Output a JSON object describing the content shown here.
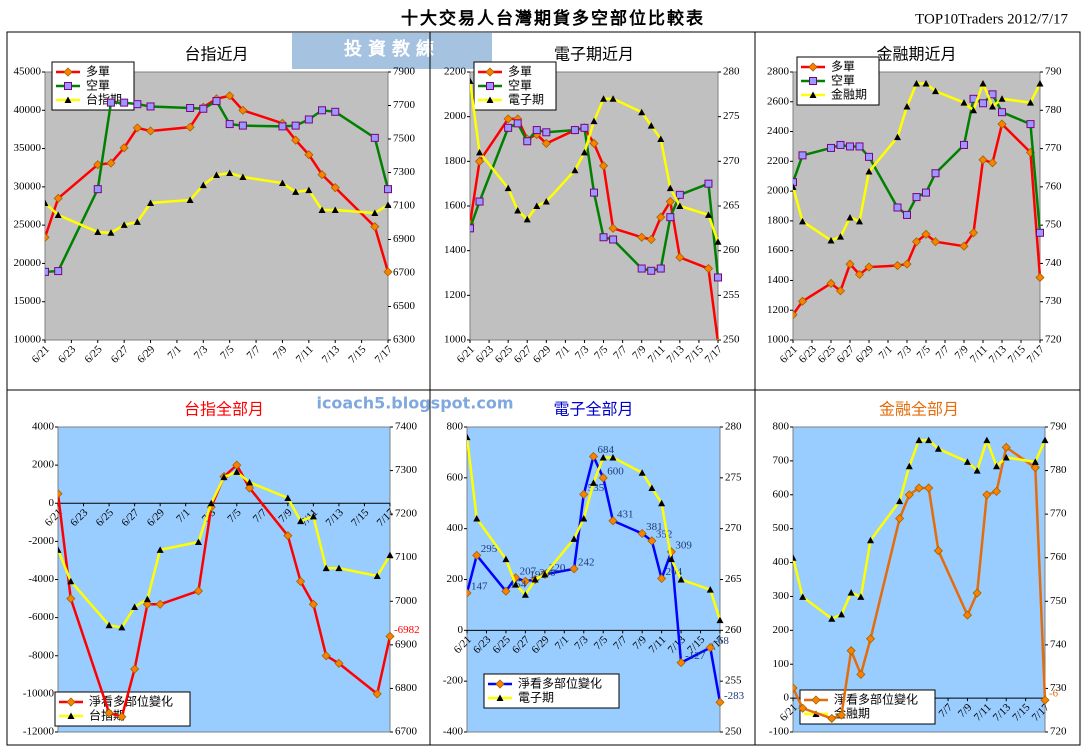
{
  "header": {
    "title": "十大交易人台灣期貨多空部位比較表",
    "source": "TOP10Traders 2012/7/17",
    "logo": "投資教練",
    "watermark": "icoach5.blogspot.com"
  },
  "chart_data": [
    {
      "type": "line",
      "title": "台指近月",
      "title_color": "#000000",
      "plot_color": "#c0c0c0",
      "legend": "upper left",
      "x": [
        "6/21",
        "6/22",
        "6/25",
        "6/26",
        "6/27",
        "6/28",
        "6/29",
        "7/2",
        "7/3",
        "7/4",
        "7/5",
        "7/6",
        "7/9",
        "7/10",
        "7/11",
        "7/12",
        "7/13",
        "7/16",
        "7/17"
      ],
      "xlim": [
        "6/21",
        "7/17"
      ],
      "xticks": [
        "6/21",
        "6/23",
        "6/25",
        "6/27",
        "6/29",
        "7/1",
        "7/3",
        "7/5",
        "7/7",
        "7/9",
        "7/11",
        "7/13",
        "7/15",
        "7/17"
      ],
      "ylim": [
        10000,
        45000
      ],
      "yticks": [
        10000,
        15000,
        20000,
        25000,
        30000,
        35000,
        40000,
        45000
      ],
      "y2lim": [
        6300,
        7900
      ],
      "y2ticks": [
        6300,
        6500,
        6700,
        6900,
        7100,
        7300,
        7500,
        7700,
        7900
      ],
      "series": [
        {
          "name": "多單",
          "color": "#ff0000",
          "marker": "diamond",
          "marker_color": "#ff8000",
          "values": [
            23400,
            28500,
            32900,
            33100,
            35100,
            37700,
            37300,
            37800,
            40400,
            41500,
            41900,
            40000,
            38300,
            36100,
            34200,
            31600,
            29900,
            24800,
            18900
          ]
        },
        {
          "name": "空單",
          "color": "#008000",
          "marker": "square",
          "marker_color": "#9999ff",
          "values": [
            18900,
            19000,
            29700,
            41000,
            41000,
            40800,
            40500,
            40300,
            40200,
            41200,
            38200,
            38000,
            37900,
            38000,
            38800,
            40000,
            39800,
            36400,
            29700
          ]
        },
        {
          "name": "台指期",
          "color": "#ffff00",
          "marker": "triangle",
          "marker_color": "#000000",
          "axis": "y2",
          "values": [
            7118,
            7046,
            6945,
            6940,
            6987,
            7005,
            7118,
            7136,
            7225,
            7285,
            7297,
            7273,
            7237,
            7184,
            7195,
            7076,
            7076,
            7058,
            7106
          ]
        }
      ]
    },
    {
      "type": "line",
      "title": "電子期近月",
      "title_color": "#000000",
      "plot_color": "#c0c0c0",
      "legend": "upper left",
      "x": [
        "6/21",
        "6/22",
        "6/25",
        "6/26",
        "6/27",
        "6/28",
        "6/29",
        "7/2",
        "7/3",
        "7/4",
        "7/5",
        "7/6",
        "7/9",
        "7/10",
        "7/11",
        "7/12",
        "7/13",
        "7/16",
        "7/17"
      ],
      "xlim": [
        "6/21",
        "7/17"
      ],
      "xticks": [
        "6/21",
        "6/23",
        "6/25",
        "6/27",
        "6/29",
        "7/1",
        "7/3",
        "7/5",
        "7/7",
        "7/9",
        "7/11",
        "7/13",
        "7/15",
        "7/17"
      ],
      "ylim": [
        1000,
        2200
      ],
      "yticks": [
        1000,
        1200,
        1400,
        1600,
        1800,
        2000,
        2200
      ],
      "y2lim": [
        250,
        280
      ],
      "y2ticks": [
        250,
        255,
        260,
        265,
        270,
        275,
        280
      ],
      "series": [
        {
          "name": "多單",
          "color": "#ff0000",
          "marker": "diamond",
          "marker_color": "#ff8000",
          "values": [
            1520,
            1800,
            1990,
            1990,
            1900,
            1920,
            1880,
            1940,
            1950,
            1880,
            1780,
            1500,
            1460,
            1450,
            1550,
            1620,
            1370,
            1320,
            990
          ]
        },
        {
          "name": "空單",
          "color": "#008000",
          "marker": "square",
          "marker_color": "#9999ff",
          "values": [
            1500,
            1620,
            1950,
            1970,
            1890,
            1940,
            1930,
            1940,
            1950,
            1660,
            1460,
            1450,
            1320,
            1310,
            1320,
            1550,
            1650,
            1700,
            1280
          ]
        },
        {
          "name": "電子期",
          "color": "#ffff00",
          "marker": "triangle",
          "marker_color": "#000000",
          "axis": "y2",
          "values": [
            279,
            271,
            267,
            264.5,
            263.5,
            265,
            265.5,
            269,
            271,
            274.5,
            277,
            277,
            275.5,
            274,
            272.5,
            267,
            265,
            264,
            261
          ]
        }
      ]
    },
    {
      "type": "line",
      "title": "金融期近月",
      "title_color": "#000000",
      "plot_color": "#c0c0c0",
      "legend": "upper left",
      "x": [
        "6/21",
        "6/22",
        "6/25",
        "6/26",
        "6/27",
        "6/28",
        "6/29",
        "7/2",
        "7/3",
        "7/4",
        "7/5",
        "7/6",
        "7/9",
        "7/10",
        "7/11",
        "7/12",
        "7/13",
        "7/16",
        "7/17"
      ],
      "xlim": [
        "6/21",
        "7/17"
      ],
      "xticks": [
        "6/21",
        "6/23",
        "6/25",
        "6/27",
        "6/29",
        "7/1",
        "7/3",
        "7/5",
        "7/7",
        "7/9",
        "7/11",
        "7/13",
        "7/15",
        "7/17"
      ],
      "ylim": [
        1000,
        2800
      ],
      "yticks": [
        1000,
        1200,
        1400,
        1600,
        1800,
        2000,
        2200,
        2400,
        2600,
        2800
      ],
      "y2lim": [
        720,
        790
      ],
      "y2ticks": [
        720,
        730,
        740,
        750,
        760,
        770,
        780,
        790
      ],
      "series": [
        {
          "name": "多單",
          "color": "#ff0000",
          "marker": "diamond",
          "marker_color": "#ff8000",
          "values": [
            1170,
            1260,
            1380,
            1330,
            1510,
            1440,
            1490,
            1500,
            1510,
            1660,
            1710,
            1660,
            1630,
            1720,
            2210,
            2190,
            2450,
            2260,
            1420
          ]
        },
        {
          "name": "空單",
          "color": "#008000",
          "marker": "square",
          "marker_color": "#9999ff",
          "values": [
            2060,
            2240,
            2290,
            2310,
            2300,
            2300,
            2230,
            1890,
            1840,
            1960,
            1990,
            2120,
            2310,
            2620,
            2590,
            2650,
            2530,
            2450,
            1720
          ]
        },
        {
          "name": "金融期",
          "color": "#ffff00",
          "marker": "triangle",
          "marker_color": "#000000",
          "axis": "y2",
          "values": [
            760,
            751,
            746,
            747,
            752,
            751,
            764,
            773,
            781,
            787,
            787,
            785,
            782,
            780,
            787,
            781,
            783,
            782,
            787
          ]
        }
      ]
    },
    {
      "type": "line",
      "title": "台指全部月",
      "title_color": "#ff0000",
      "plot_color": "#99ccff",
      "legend": "lower left",
      "data_labels": "last",
      "x": [
        "6/21",
        "6/22",
        "6/25",
        "6/26",
        "6/27",
        "6/28",
        "6/29",
        "7/2",
        "7/3",
        "7/4",
        "7/5",
        "7/6",
        "7/9",
        "7/10",
        "7/11",
        "7/12",
        "7/13",
        "7/16",
        "7/17"
      ],
      "xlim": [
        "6/21",
        "7/17"
      ],
      "xticks": [
        "6/21",
        "6/23",
        "6/25",
        "6/27",
        "6/29",
        "7/1",
        "7/3",
        "7/5",
        "7/7",
        "7/9",
        "7/11",
        "7/13",
        "7/15",
        "7/17"
      ],
      "ylim": [
        -12000,
        4000
      ],
      "yticks": [
        -12000,
        -10000,
        -8000,
        -6000,
        -4000,
        -2000,
        0,
        2000,
        4000
      ],
      "y2lim": [
        6700,
        7400
      ],
      "y2ticks": [
        6700,
        6800,
        6900,
        7000,
        7100,
        7200,
        7300,
        7400
      ],
      "series": [
        {
          "name": "淨看多部位變化",
          "color": "#ff0000",
          "marker": "diamond",
          "marker_color": "#ff8000",
          "label_color": "#ff0000",
          "values": [
            500,
            -5000,
            -11000,
            -11200,
            -8700,
            -5300,
            -5300,
            -4600,
            -200,
            1400,
            2000,
            800,
            -1700,
            -4100,
            -5300,
            -8000,
            -8400,
            -10000,
            -6982
          ]
        },
        {
          "name": "台指期",
          "color": "#ffff00",
          "marker": "triangle",
          "marker_color": "#000000",
          "axis": "y2",
          "values": [
            7118,
            7046,
            6945,
            6940,
            6987,
            7005,
            7118,
            7136,
            7225,
            7285,
            7297,
            7273,
            7237,
            7184,
            7195,
            7076,
            7076,
            7058,
            7106
          ]
        }
      ]
    },
    {
      "type": "line",
      "title": "電子全部月",
      "title_color": "#0000cc",
      "plot_color": "#99ccff",
      "legend": "lower left",
      "data_labels": "all",
      "x": [
        "6/21",
        "6/22",
        "6/25",
        "6/26",
        "6/27",
        "6/28",
        "6/29",
        "7/2",
        "7/3",
        "7/4",
        "7/5",
        "7/6",
        "7/9",
        "7/10",
        "7/11",
        "7/12",
        "7/13",
        "7/16",
        "7/17"
      ],
      "xlim": [
        "6/21",
        "7/17"
      ],
      "xticks": [
        "6/21",
        "6/23",
        "6/25",
        "6/27",
        "6/29",
        "7/1",
        "7/3",
        "7/5",
        "7/7",
        "7/9",
        "7/11",
        "7/13",
        "7/15",
        "7/17"
      ],
      "ylim": [
        -400,
        800
      ],
      "yticks": [
        -400,
        -200,
        0,
        200,
        400,
        600,
        800
      ],
      "y2lim": [
        250,
        280
      ],
      "y2ticks": [
        250,
        255,
        260,
        265,
        270,
        275,
        280
      ],
      "series": [
        {
          "name": "淨看多部位變化",
          "color": "#0000ff",
          "marker": "diamond",
          "marker_color": "#ff8000",
          "label_color": "#1f3c78",
          "values": [
            147,
            295,
            154,
            207,
            193,
            200,
            220,
            242,
            535,
            684,
            600,
            431,
            381,
            352,
            204,
            309,
            -127,
            -68,
            -283
          ]
        },
        {
          "name": "電子期",
          "color": "#ffff00",
          "marker": "triangle",
          "marker_color": "#000000",
          "axis": "y2",
          "values": [
            279,
            271,
            267,
            264.5,
            263.5,
            265,
            265.5,
            269,
            271,
            274.5,
            277,
            277,
            275.5,
            274,
            272.5,
            267,
            265,
            264,
            261
          ]
        }
      ]
    },
    {
      "type": "line",
      "title": "金融全部月",
      "title_color": "#e46c0a",
      "plot_color": "#99ccff",
      "legend": "lower left",
      "data_labels": "last",
      "x": [
        "6/21",
        "6/22",
        "6/25",
        "6/26",
        "6/27",
        "6/28",
        "6/29",
        "7/2",
        "7/3",
        "7/4",
        "7/5",
        "7/6",
        "7/9",
        "7/10",
        "7/11",
        "7/12",
        "7/13",
        "7/16",
        "7/17"
      ],
      "xlim": [
        "6/21",
        "7/17"
      ],
      "xticks": [
        "6/21",
        "6/23",
        "6/25",
        "6/27",
        "6/29",
        "7/1",
        "7/3",
        "7/5",
        "7/7",
        "7/9",
        "7/11",
        "7/13",
        "7/15",
        "7/17"
      ],
      "ylim": [
        -100,
        800
      ],
      "yticks": [
        -100,
        0,
        100,
        200,
        300,
        400,
        500,
        600,
        700,
        800
      ],
      "y2lim": [
        720,
        790
      ],
      "y2ticks": [
        720,
        730,
        740,
        750,
        760,
        770,
        780,
        790
      ],
      "series": [
        {
          "name": "淨看多部位變化",
          "color": "#e46c0a",
          "marker": "diamond",
          "marker_color": "#ff8000",
          "label_color": "#e46c0a",
          "values": [
            30,
            -30,
            -60,
            -50,
            140,
            70,
            175,
            530,
            600,
            620,
            620,
            435,
            245,
            310,
            600,
            610,
            740,
            680,
            -6
          ]
        },
        {
          "name": "金融期",
          "color": "#ffff00",
          "marker": "triangle",
          "marker_color": "#000000",
          "axis": "y2",
          "values": [
            760,
            751,
            746,
            747,
            752,
            751,
            764,
            773,
            781,
            787,
            787,
            785,
            782,
            780,
            787,
            781,
            783,
            782,
            787
          ]
        }
      ]
    }
  ]
}
